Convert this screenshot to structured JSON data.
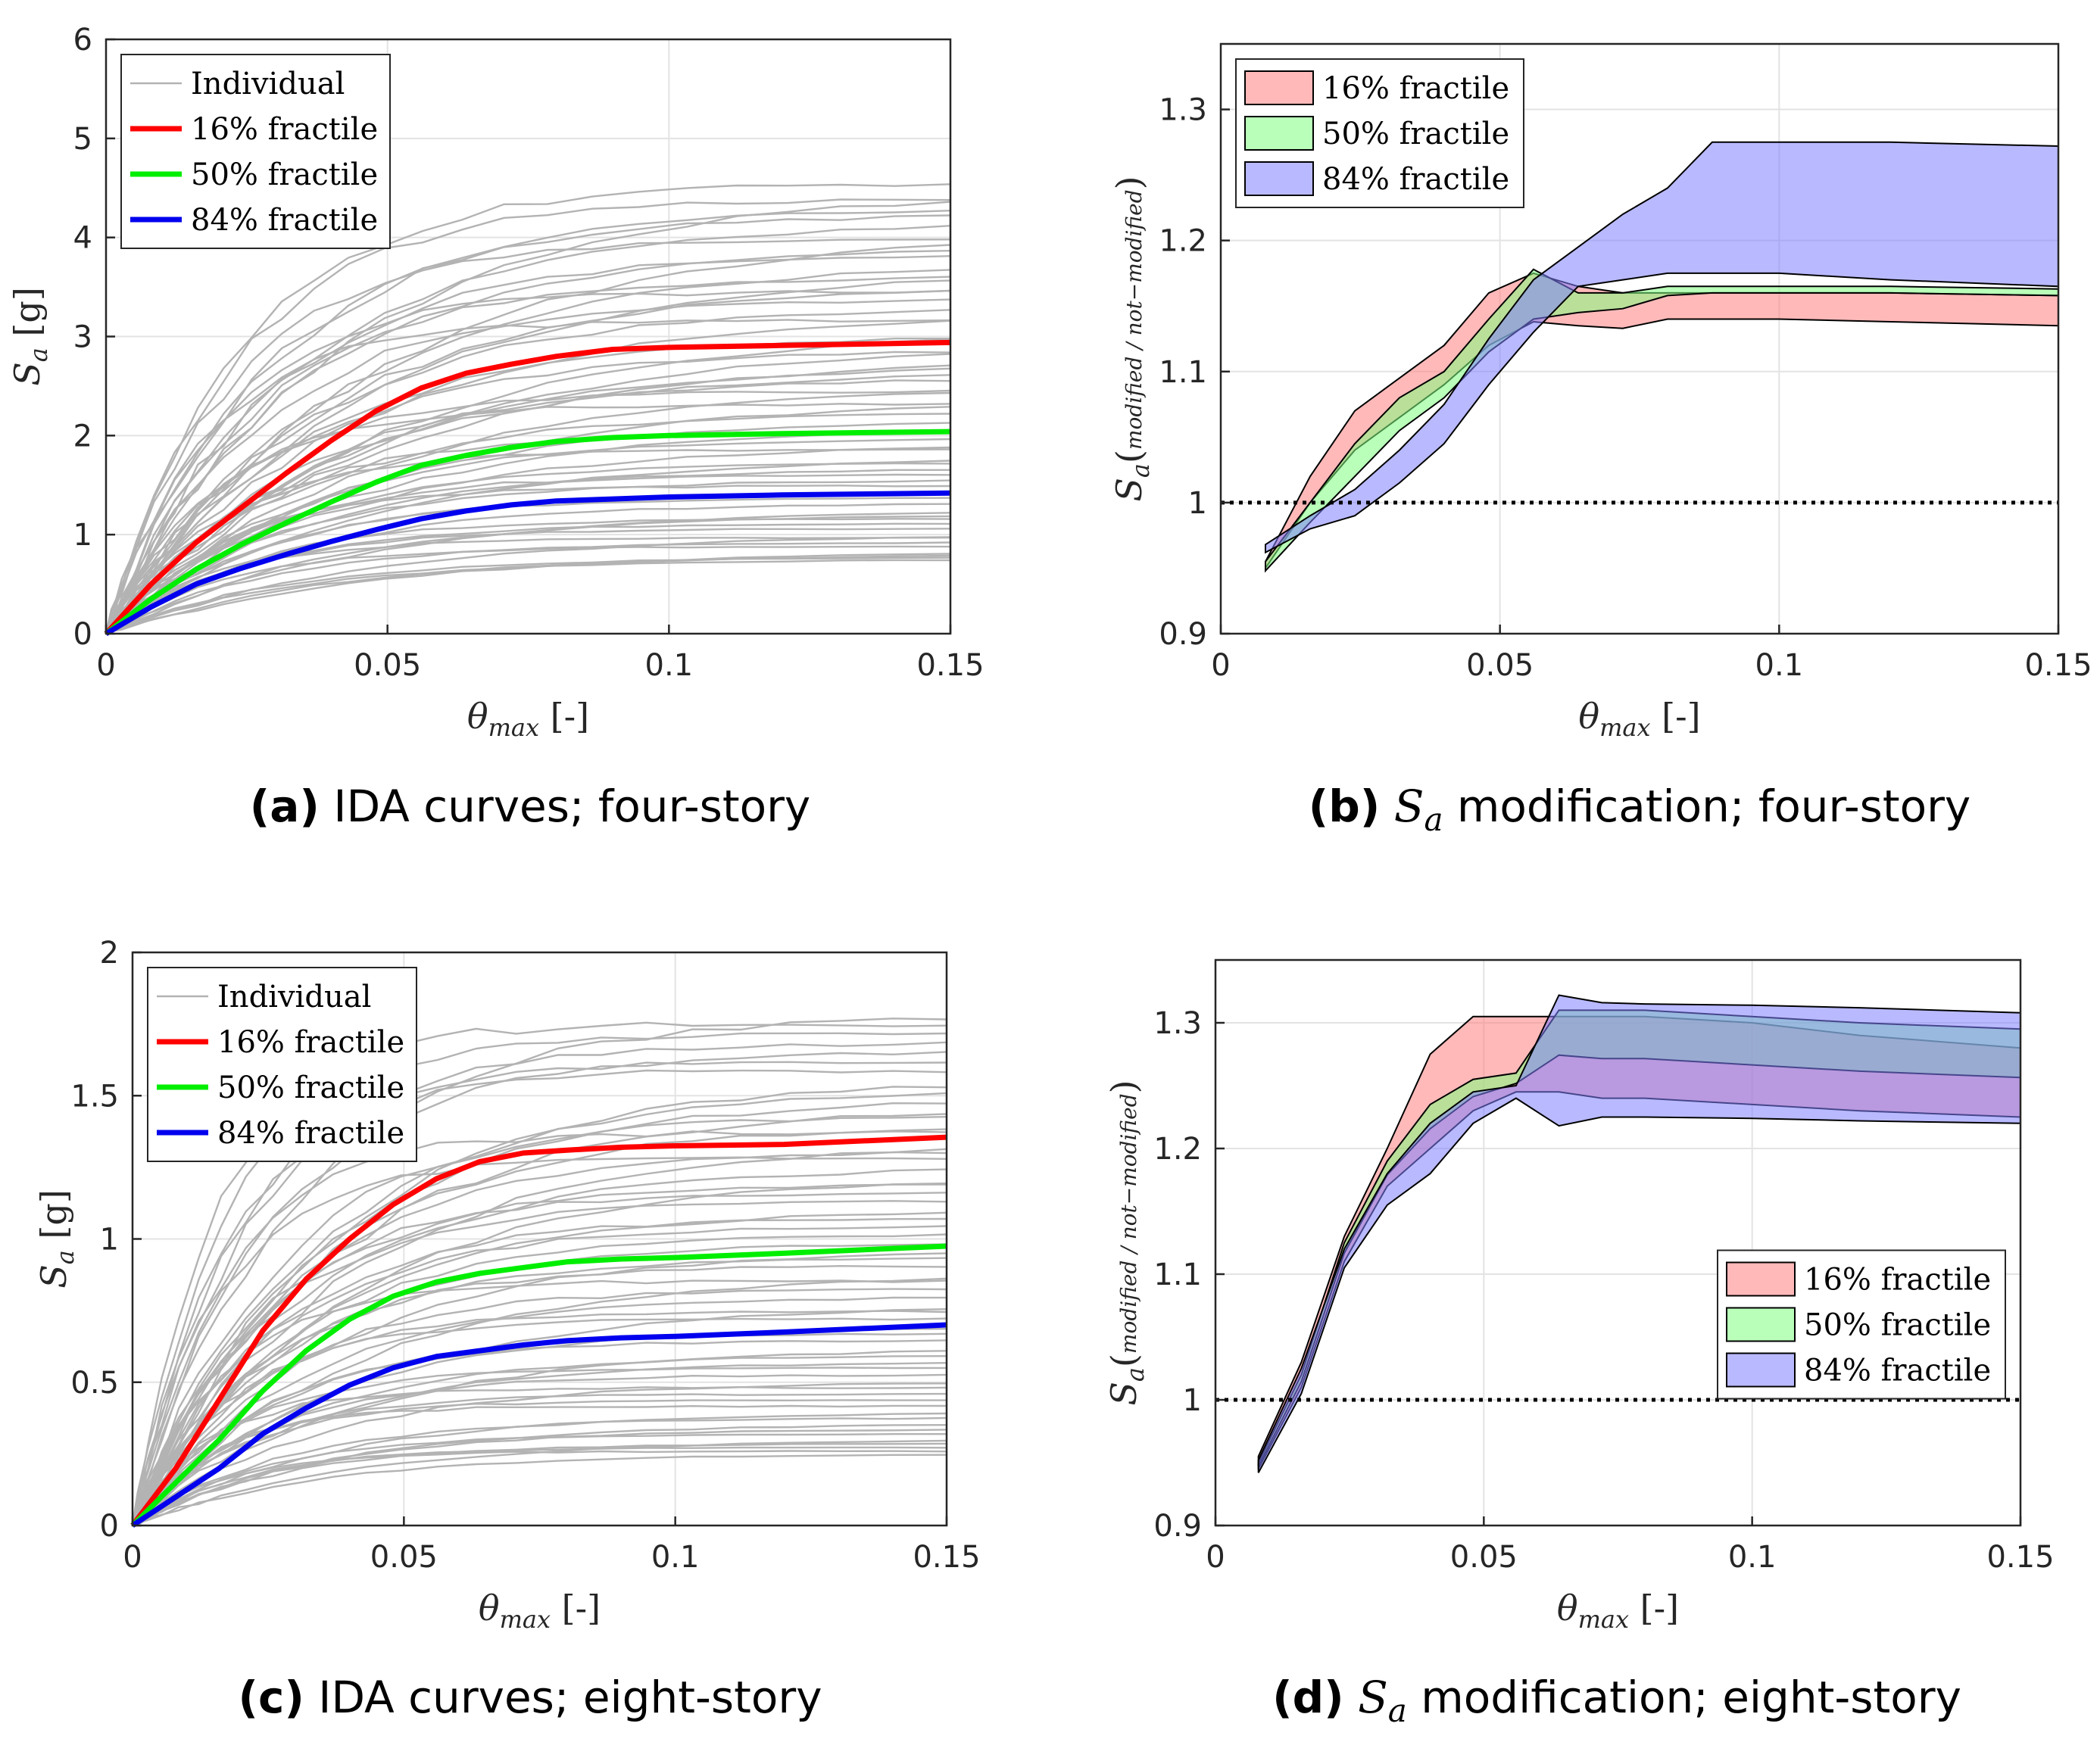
{
  "chart_data": [
    {
      "id": "a",
      "type": "line",
      "caption_letter": "(a)",
      "caption_text": " IDA curves; four-story",
      "xlabel": "θ",
      "xlabel_sub": "max",
      "xlabel_unit": " [-]",
      "ylabel": "S",
      "ylabel_sub": "a",
      "ylabel_unit": " [g]",
      "xlim": [
        0,
        0.15
      ],
      "ylim": [
        0,
        6
      ],
      "xticks": [
        0,
        0.05,
        0.1,
        0.15
      ],
      "xtick_labels": [
        "0",
        "0.05",
        "0.1",
        "0.15"
      ],
      "yticks": [
        0,
        1,
        2,
        3,
        4,
        5,
        6
      ],
      "ytick_labels": [
        "0",
        "1",
        "2",
        "3",
        "4",
        "5",
        "6"
      ],
      "grid": true,
      "legend_position": "top-left",
      "individual": {
        "name": "Individual",
        "color": "#b3b3b3",
        "count": 60,
        "plateau_min": 0.75,
        "plateau_max": 4.55,
        "theta_sat": 0.06
      },
      "series": [
        {
          "name": "16% fractile",
          "color": "#ff0000",
          "x": [
            0,
            0.008,
            0.016,
            0.024,
            0.032,
            0.04,
            0.048,
            0.056,
            0.064,
            0.072,
            0.08,
            0.09,
            0.1,
            0.12,
            0.15
          ],
          "y": [
            0,
            0.5,
            0.92,
            1.27,
            1.62,
            1.95,
            2.25,
            2.48,
            2.63,
            2.72,
            2.8,
            2.87,
            2.89,
            2.91,
            2.94
          ]
        },
        {
          "name": "50% fractile",
          "color": "#00ee00",
          "x": [
            0,
            0.008,
            0.016,
            0.024,
            0.032,
            0.04,
            0.048,
            0.056,
            0.064,
            0.072,
            0.08,
            0.09,
            0.1,
            0.12,
            0.15
          ],
          "y": [
            0,
            0.35,
            0.65,
            0.9,
            1.12,
            1.33,
            1.53,
            1.7,
            1.8,
            1.88,
            1.94,
            1.98,
            2.0,
            2.02,
            2.04
          ]
        },
        {
          "name": "84% fractile",
          "color": "#0000ee",
          "x": [
            0,
            0.008,
            0.016,
            0.024,
            0.032,
            0.04,
            0.048,
            0.056,
            0.064,
            0.072,
            0.08,
            0.09,
            0.1,
            0.12,
            0.15
          ],
          "y": [
            0,
            0.27,
            0.5,
            0.66,
            0.8,
            0.93,
            1.05,
            1.16,
            1.24,
            1.3,
            1.34,
            1.36,
            1.38,
            1.4,
            1.42
          ]
        }
      ]
    },
    {
      "id": "b",
      "type": "area",
      "caption_letter": "(b)",
      "caption_pre": " ",
      "caption_ital": "S",
      "caption_sub": "a",
      "caption_text": " modification; four-story",
      "xlabel": "θ",
      "xlabel_sub": "max",
      "xlabel_unit": " [-]",
      "ylabel": "S",
      "ylabel_sub": "a",
      "ylabel_num": "modified",
      "ylabel_den": "not−modified",
      "xlim": [
        0,
        0.15
      ],
      "ylim": [
        0.9,
        1.35
      ],
      "xticks": [
        0,
        0.05,
        0.1,
        0.15
      ],
      "xtick_labels": [
        "0",
        "0.05",
        "0.1",
        "0.15"
      ],
      "yticks": [
        0.9,
        1.0,
        1.1,
        1.2,
        1.3
      ],
      "ytick_labels": [
        "0.9",
        "1",
        "1.1",
        "1.2",
        "1.3"
      ],
      "grid": true,
      "legend_position": "top-left",
      "reference_line": 1.0,
      "x": [
        0.008,
        0.016,
        0.024,
        0.032,
        0.04,
        0.048,
        0.056,
        0.064,
        0.072,
        0.08,
        0.088,
        0.1,
        0.12,
        0.15
      ],
      "series": [
        {
          "name": "16% fractile",
          "color": "#ff8080",
          "upper": [
            0.955,
            1.02,
            1.07,
            1.095,
            1.12,
            1.16,
            1.175,
            1.165,
            1.16,
            1.16,
            1.16,
            1.16,
            1.16,
            1.158
          ],
          "lower": [
            0.95,
            1.0,
            1.04,
            1.065,
            1.09,
            1.12,
            1.138,
            1.135,
            1.133,
            1.14,
            1.14,
            1.14,
            1.138,
            1.135
          ]
        },
        {
          "name": "50% fractile",
          "color": "#80ff80",
          "upper": [
            0.955,
            1.0,
            1.045,
            1.08,
            1.1,
            1.14,
            1.178,
            1.16,
            1.16,
            1.165,
            1.165,
            1.165,
            1.165,
            1.163
          ],
          "lower": [
            0.948,
            0.985,
            1.02,
            1.055,
            1.08,
            1.115,
            1.14,
            1.145,
            1.148,
            1.158,
            1.16,
            1.16,
            1.16,
            1.158
          ]
        },
        {
          "name": "84% fractile",
          "color": "#8080ff",
          "upper": [
            0.968,
            0.99,
            1.01,
            1.04,
            1.075,
            1.125,
            1.17,
            1.195,
            1.22,
            1.24,
            1.275,
            1.275,
            1.275,
            1.272
          ],
          "lower": [
            0.962,
            0.98,
            0.99,
            1.015,
            1.045,
            1.09,
            1.13,
            1.165,
            1.17,
            1.175,
            1.175,
            1.175,
            1.17,
            1.165
          ]
        }
      ]
    },
    {
      "id": "c",
      "type": "line",
      "caption_letter": "(c)",
      "caption_text": " IDA curves; eight-story",
      "xlabel": "θ",
      "xlabel_sub": "max",
      "xlabel_unit": " [-]",
      "ylabel": "S",
      "ylabel_sub": "a",
      "ylabel_unit": " [g]",
      "xlim": [
        0,
        0.15
      ],
      "ylim": [
        0,
        2
      ],
      "xticks": [
        0,
        0.05,
        0.1,
        0.15
      ],
      "xtick_labels": [
        "0",
        "0.05",
        "0.1",
        "0.15"
      ],
      "yticks": [
        0,
        0.5,
        1,
        1.5,
        2
      ],
      "ytick_labels": [
        "0",
        "0.5",
        "1",
        "1.5",
        "2"
      ],
      "grid": true,
      "legend_position": "top-left",
      "individual": {
        "name": "Individual",
        "color": "#b3b3b3",
        "count": 60,
        "plateau_min": 0.25,
        "plateau_max": 1.78,
        "theta_sat": 0.05
      },
      "series": [
        {
          "name": "16% fractile",
          "color": "#ff0000",
          "x": [
            0,
            0.008,
            0.016,
            0.024,
            0.032,
            0.04,
            0.048,
            0.056,
            0.064,
            0.072,
            0.08,
            0.09,
            0.1,
            0.12,
            0.15
          ],
          "y": [
            0,
            0.2,
            0.44,
            0.68,
            0.86,
            1.0,
            1.12,
            1.21,
            1.27,
            1.3,
            1.31,
            1.32,
            1.325,
            1.33,
            1.355
          ]
        },
        {
          "name": "50% fractile",
          "color": "#00ee00",
          "x": [
            0,
            0.008,
            0.016,
            0.024,
            0.032,
            0.04,
            0.048,
            0.056,
            0.064,
            0.072,
            0.08,
            0.09,
            0.1,
            0.12,
            0.15
          ],
          "y": [
            0,
            0.15,
            0.3,
            0.47,
            0.61,
            0.72,
            0.8,
            0.85,
            0.88,
            0.9,
            0.92,
            0.93,
            0.935,
            0.95,
            0.975
          ]
        },
        {
          "name": "84% fractile",
          "color": "#0000ee",
          "x": [
            0,
            0.008,
            0.016,
            0.024,
            0.032,
            0.04,
            0.048,
            0.056,
            0.064,
            0.072,
            0.08,
            0.09,
            0.1,
            0.12,
            0.15
          ],
          "y": [
            0,
            0.1,
            0.2,
            0.32,
            0.41,
            0.49,
            0.55,
            0.59,
            0.61,
            0.63,
            0.645,
            0.655,
            0.66,
            0.675,
            0.7
          ]
        }
      ]
    },
    {
      "id": "d",
      "type": "area",
      "caption_letter": "(d)",
      "caption_pre": " ",
      "caption_ital": "S",
      "caption_sub": "a",
      "caption_text": " modification; eight-story",
      "xlabel": "θ",
      "xlabel_sub": "max",
      "xlabel_unit": " [-]",
      "ylabel": "S",
      "ylabel_sub": "a",
      "ylabel_num": "modified",
      "ylabel_den": "not−modified",
      "xlim": [
        0,
        0.15
      ],
      "ylim": [
        0.9,
        1.35
      ],
      "xticks": [
        0,
        0.05,
        0.1,
        0.15
      ],
      "xtick_labels": [
        "0",
        "0.05",
        "0.1",
        "0.15"
      ],
      "yticks": [
        0.9,
        1.0,
        1.1,
        1.2,
        1.3
      ],
      "ytick_labels": [
        "0.9",
        "1",
        "1.1",
        "1.2",
        "1.3"
      ],
      "grid": true,
      "legend_position": "center-right",
      "reference_line": 1.0,
      "x": [
        0.008,
        0.016,
        0.024,
        0.032,
        0.04,
        0.048,
        0.056,
        0.064,
        0.072,
        0.08,
        0.1,
        0.12,
        0.15
      ],
      "series": [
        {
          "name": "16% fractile",
          "color": "#ff8080",
          "upper": [
            0.955,
            1.03,
            1.13,
            1.2,
            1.275,
            1.305,
            1.305,
            1.305,
            1.305,
            1.305,
            1.3,
            1.29,
            1.28
          ],
          "lower": [
            0.945,
            1.01,
            1.11,
            1.17,
            1.2,
            1.23,
            1.245,
            1.245,
            1.24,
            1.24,
            1.235,
            1.23,
            1.225
          ]
        },
        {
          "name": "50% fractile",
          "color": "#80ff80",
          "upper": [
            0.95,
            1.02,
            1.125,
            1.19,
            1.235,
            1.255,
            1.26,
            1.31,
            1.31,
            1.31,
            1.305,
            1.3,
            1.295
          ]
        },
        {
          "name": "84% fractile",
          "color": "#8080ff",
          "upper": [
            0.952,
            1.025,
            1.12,
            1.18,
            1.22,
            1.245,
            1.25,
            1.322,
            1.316,
            1.315,
            1.314,
            1.312,
            1.308
          ],
          "lower": [
            0.942,
            1.005,
            1.105,
            1.155,
            1.18,
            1.22,
            1.24,
            1.218,
            1.225,
            1.225,
            1.224,
            1.222,
            1.22
          ]
        }
      ]
    }
  ]
}
